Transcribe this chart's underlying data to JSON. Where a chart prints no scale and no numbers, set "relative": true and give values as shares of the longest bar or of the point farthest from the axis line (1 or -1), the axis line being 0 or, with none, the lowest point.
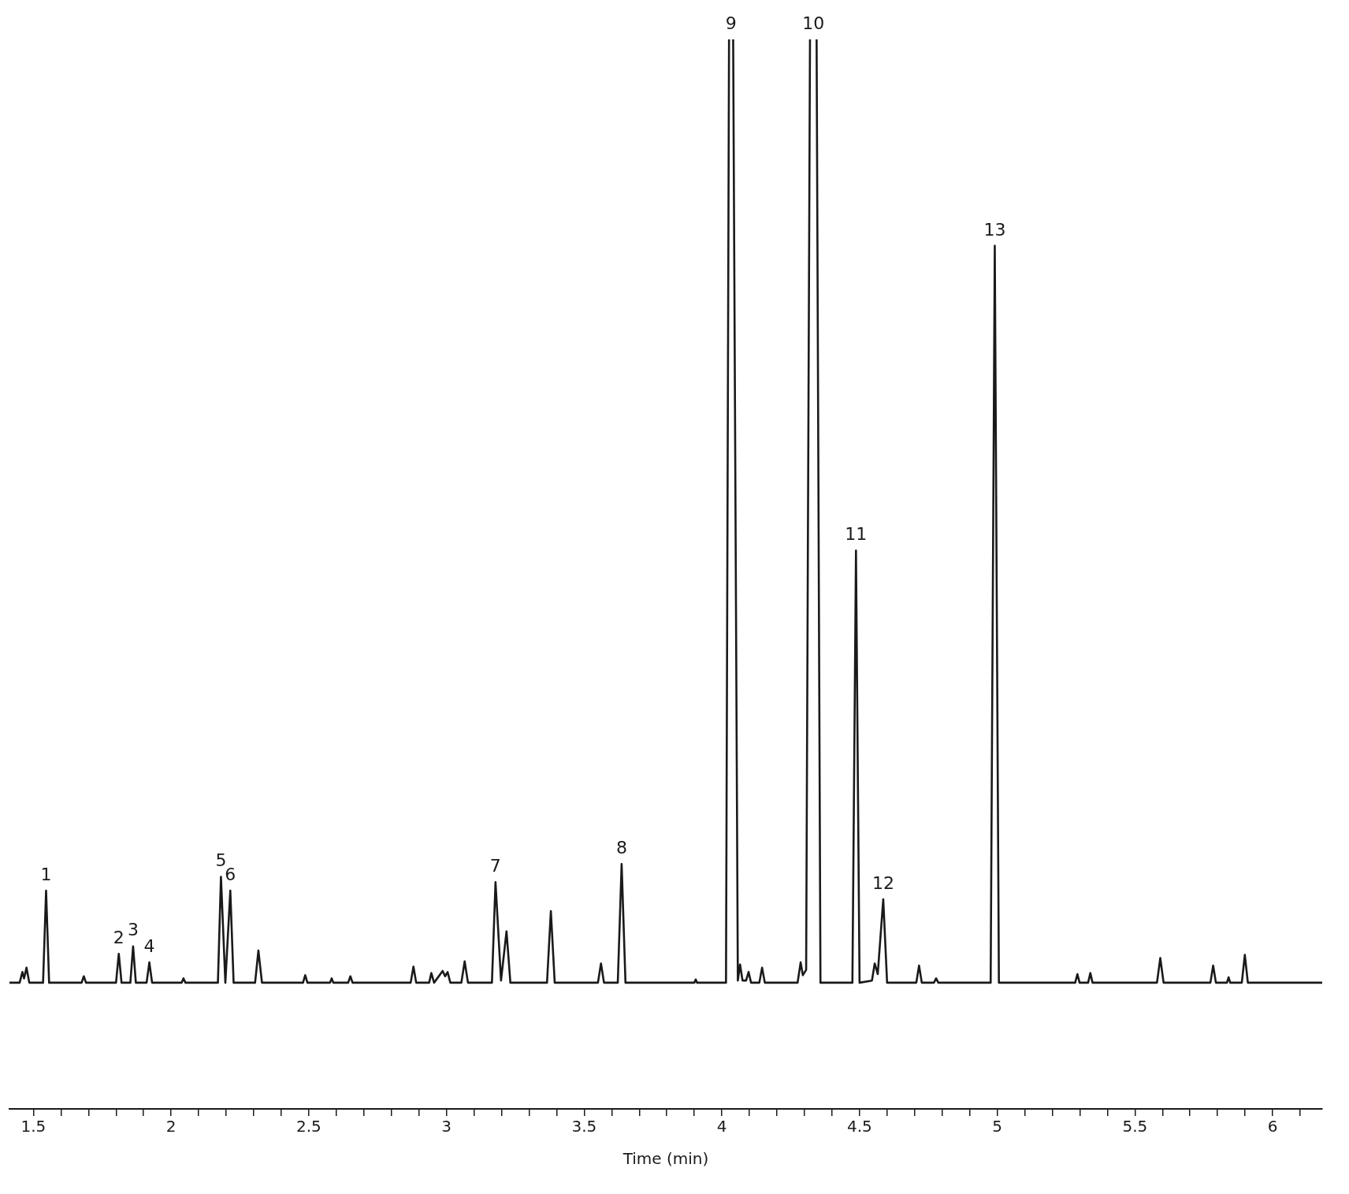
{
  "chart_data": {
    "type": "line",
    "relative": true,
    "xlabel": "Time (min)",
    "color": "#1a1a1a",
    "marker": "none",
    "line_style": "solid",
    "grid": false,
    "legend": false,
    "tick_labels": "x",
    "xlim": [
      1.413,
      6.18
    ],
    "xticks": [
      1.5,
      {
        "value": 1.6,
        "label": null
      },
      {
        "value": 1.7,
        "label": null
      },
      {
        "value": 1.8,
        "label": null
      },
      {
        "value": 1.9,
        "label": null
      },
      2,
      {
        "value": 2.1,
        "label": null
      },
      {
        "value": 2.2,
        "label": null
      },
      {
        "value": 2.3,
        "label": null
      },
      {
        "value": 2.4,
        "label": null
      },
      2.5,
      {
        "value": 2.6,
        "label": null
      },
      {
        "value": 2.7,
        "label": null
      },
      {
        "value": 2.8,
        "label": null
      },
      {
        "value": 2.9,
        "label": null
      },
      3,
      {
        "value": 3.1,
        "label": null
      },
      {
        "value": 3.2,
        "label": null
      },
      {
        "value": 3.3,
        "label": null
      },
      {
        "value": 3.4,
        "label": null
      },
      3.5,
      {
        "value": 3.6,
        "label": null
      },
      {
        "value": 3.7,
        "label": null
      },
      {
        "value": 3.8,
        "label": null
      },
      {
        "value": 3.9,
        "label": null
      },
      4,
      {
        "value": 4.1,
        "label": null
      },
      {
        "value": 4.2,
        "label": null
      },
      {
        "value": 4.3,
        "label": null
      },
      {
        "value": 4.4,
        "label": null
      },
      4.5,
      {
        "value": 4.6,
        "label": null
      },
      {
        "value": 4.7,
        "label": null
      },
      {
        "value": 4.8,
        "label": null
      },
      {
        "value": 4.9,
        "label": null
      },
      5,
      {
        "value": 5.1,
        "label": null
      },
      {
        "value": 5.2,
        "label": null
      },
      {
        "value": 5.3,
        "label": null
      },
      {
        "value": 5.4,
        "label": null
      },
      5.5,
      {
        "value": 5.6,
        "label": null
      },
      {
        "value": 5.7,
        "label": null
      },
      {
        "value": 5.8,
        "label": null
      },
      {
        "value": 5.9,
        "label": null
      },
      6,
      {
        "value": 6.1,
        "label": null
      }
    ],
    "x": [
      1.413,
      1.45,
      1.46,
      1.466,
      1.475,
      1.485,
      1.535,
      1.546,
      1.557,
      1.675,
      1.683,
      1.691,
      1.8,
      1.81,
      1.82,
      1.852,
      1.862,
      1.872,
      1.911,
      1.921,
      1.931,
      2.038,
      2.045,
      2.052,
      2.17,
      2.181,
      2.197,
      2.215,
      2.227,
      2.305,
      2.317,
      2.33,
      2.479,
      2.487,
      2.495,
      2.577,
      2.583,
      2.589,
      2.643,
      2.651,
      2.659,
      2.87,
      2.88,
      2.89,
      2.937,
      2.945,
      2.955,
      2.986,
      2.995,
      3.004,
      3.014,
      3.054,
      3.066,
      3.078,
      3.165,
      3.178,
      3.198,
      3.218,
      3.232,
      3.365,
      3.379,
      3.393,
      3.55,
      3.561,
      3.572,
      3.622,
      3.636,
      3.65,
      3.9,
      3.905,
      3.91,
      4.015,
      4.026,
      4.033,
      4.041,
      4.058,
      4.066,
      4.075,
      4.088,
      4.097,
      4.106,
      4.136,
      4.146,
      4.156,
      4.275,
      4.286,
      4.294,
      4.306,
      4.32,
      4.332,
      4.344,
      4.358,
      4.474,
      4.487,
      4.5,
      4.545,
      4.555,
      4.566,
      4.586,
      4.6,
      4.706,
      4.716,
      4.726,
      4.77,
      4.778,
      4.786,
      4.976,
      4.991,
      5.006,
      5.283,
      5.291,
      5.299,
      5.33,
      5.338,
      5.346,
      5.58,
      5.592,
      5.604,
      5.774,
      5.784,
      5.794,
      5.834,
      5.84,
      5.846,
      5.888,
      5.899,
      5.91,
      6.18
    ],
    "values": [
      0.118,
      0.118,
      0.128,
      0.122,
      0.132,
      0.118,
      0.118,
      0.204,
      0.118,
      0.118,
      0.124,
      0.118,
      0.118,
      0.145,
      0.118,
      0.118,
      0.152,
      0.118,
      0.118,
      0.137,
      0.118,
      0.118,
      0.122,
      0.118,
      0.118,
      0.217,
      0.118,
      0.204,
      0.118,
      0.118,
      0.148,
      0.118,
      0.118,
      0.125,
      0.118,
      0.118,
      0.122,
      0.118,
      0.118,
      0.124,
      0.118,
      0.118,
      0.133,
      0.118,
      0.118,
      0.127,
      0.118,
      0.129,
      0.124,
      0.128,
      0.118,
      0.118,
      0.138,
      0.118,
      0.118,
      0.212,
      0.12,
      0.166,
      0.118,
      0.118,
      0.185,
      0.118,
      0.118,
      0.136,
      0.118,
      0.118,
      0.229,
      0.118,
      0.118,
      0.121,
      0.118,
      0.118,
      1,
      null,
      1,
      0.12,
      0.135,
      0.12,
      0.12,
      0.128,
      0.118,
      0.118,
      0.132,
      0.118,
      0.118,
      0.137,
      0.125,
      0.13,
      1,
      null,
      1,
      0.118,
      0.118,
      0.522,
      0.118,
      0.12,
      0.136,
      0.126,
      0.196,
      0.118,
      0.118,
      0.134,
      0.118,
      0.118,
      0.122,
      0.118,
      0.118,
      0.807,
      0.118,
      0.118,
      0.126,
      0.118,
      0.118,
      0.127,
      0.118,
      0.118,
      0.141,
      0.118,
      0.118,
      0.134,
      0.118,
      0.118,
      0.123,
      0.118,
      0.118,
      0.144,
      0.118,
      0.118
    ],
    "annotations": [
      {
        "text": "1",
        "x": 1.546,
        "y": 0.204
      },
      {
        "text": "2",
        "x": 1.81,
        "y": 0.145
      },
      {
        "text": "3",
        "x": 1.862,
        "y": 0.152
      },
      {
        "text": "4",
        "x": 1.921,
        "y": 0.137
      },
      {
        "text": "5",
        "x": 2.181,
        "y": 0.217
      },
      {
        "text": "6",
        "x": 2.215,
        "y": 0.204
      },
      {
        "text": "7",
        "x": 3.178,
        "y": 0.212
      },
      {
        "text": "8",
        "x": 3.636,
        "y": 0.229
      },
      {
        "text": "9",
        "x": 4.033,
        "y": 1
      },
      {
        "text": "10",
        "x": 4.332,
        "y": 1
      },
      {
        "text": "11",
        "x": 4.487,
        "y": 0.522
      },
      {
        "text": "12",
        "x": 4.586,
        "y": 0.196
      },
      {
        "text": "13",
        "x": 4.991,
        "y": 0.807
      }
    ]
  }
}
